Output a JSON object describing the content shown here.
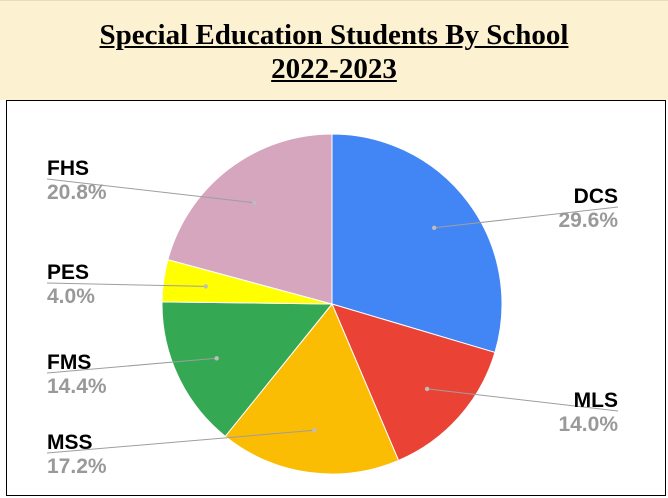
{
  "header": {
    "title_line1": "Special Education Students By School",
    "title_line2": "2022-2023"
  },
  "chart_data": {
    "type": "pie",
    "title": "Special Education Students By School 2022-2023",
    "slices": [
      {
        "label": "DCS",
        "value": 29.6,
        "display": "29.6%",
        "color": "#4285f4"
      },
      {
        "label": "MLS",
        "value": 14.0,
        "display": "14.0%",
        "color": "#ea4335"
      },
      {
        "label": "MSS",
        "value": 17.2,
        "display": "17.2%",
        "color": "#fbbc04"
      },
      {
        "label": "FMS",
        "value": 14.4,
        "display": "14.4%",
        "color": "#34a853"
      },
      {
        "label": "PES",
        "value": 4.0,
        "display": "4.0%",
        "color": "#ffff00"
      },
      {
        "label": "FHS",
        "value": 20.8,
        "display": "20.8%",
        "color": "#d5a6bd"
      }
    ],
    "label_name_color": "#000000",
    "label_value_color": "#999999",
    "leader_line_color": "#9e9e9e"
  }
}
